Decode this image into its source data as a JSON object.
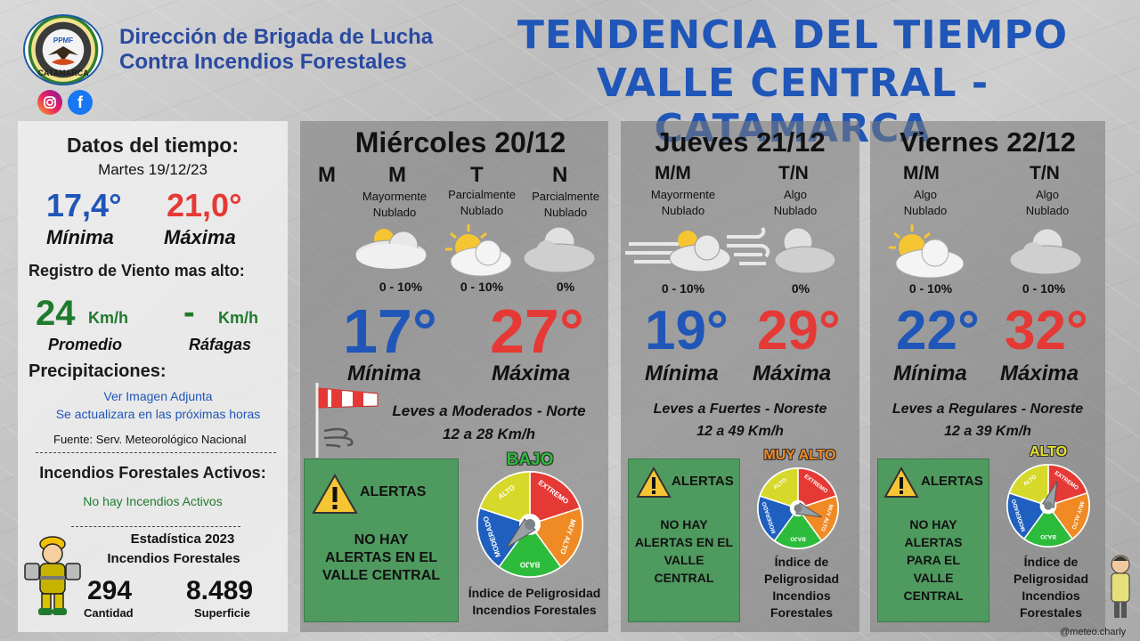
{
  "header": {
    "org_line1": "Dirección de Brigada de Lucha",
    "org_line2": "Contra Incendios Forestales",
    "title_line1": "TENDENCIA DEL TIEMPO",
    "title_line2": "VALLE CENTRAL - CATAMARCA",
    "logo_text": "CATAMARCA",
    "logo_badge": "PPMF",
    "instagram_icon": "instagram-icon",
    "facebook_icon": "facebook-icon"
  },
  "left": {
    "heading": "Datos del tiempo:",
    "date": "Martes 19/12/23",
    "min_value": "17,4°",
    "max_value": "21,0°",
    "min_label": "Mínima",
    "max_label": "Máxima",
    "wind_heading": "Registro de Viento mas alto:",
    "wind_avg": "24",
    "wind_avg_unit": "Km/h",
    "wind_gust": "-",
    "wind_gust_unit": "Km/h",
    "wind_avg_label": "Promedio",
    "wind_gust_label": "Ráfagas",
    "precip_heading": "Precipitaciones:",
    "precip_line1": "Ver Imagen Adjunta",
    "precip_line2": "Se actualizara en las próximas horas",
    "source": "Fuente: Serv. Meteorológico Nacional",
    "fires_heading": "Incendios Forestales Activos:",
    "fires_status": "No hay Incendios Activos",
    "stats_line1": "Estadística 2023",
    "stats_line2": "Incendios Forestales",
    "count_value": "294",
    "count_label": "Cantidad",
    "area_value": "8.489",
    "area_label": "Superficie"
  },
  "days": [
    {
      "title": "Miércoles 20/12",
      "periods": [
        "M",
        "M",
        "T",
        "N"
      ],
      "conditions": [
        {
          "line1": "Mayormente",
          "line2": "Nublado",
          "pct": "0 - 10%"
        },
        {
          "line1": "Parcialmente",
          "line2": "Nublado",
          "pct": "0 - 10%"
        },
        {
          "line1": "Parcialmente",
          "line2": "Nublado",
          "pct": "0%"
        }
      ],
      "min": "17°",
      "max": "27°",
      "min_label": "Mínima",
      "max_label": "Máxima",
      "wind_line1": "Leves a Moderados - Norte",
      "wind_line2": "12 a 28 Km/h",
      "alert_title": "ALERTAS",
      "alert_body": [
        "NO HAY",
        "ALERTAS EN EL",
        "VALLE CENTRAL"
      ],
      "danger_level": "BAJO",
      "index_lines": [
        "Índice de Peligrosidad",
        "Incendios Forestales"
      ]
    },
    {
      "title": "Jueves 21/12",
      "periods": [
        "M/M",
        "T/N"
      ],
      "conditions": [
        {
          "line1": "Mayormente",
          "line2": "Nublado",
          "pct": "0 - 10%"
        },
        {
          "line1": "Algo",
          "line2": "Nublado",
          "pct": "0%"
        }
      ],
      "min": "19°",
      "max": "29°",
      "min_label": "Mínima",
      "max_label": "Máxima",
      "wind_line1": "Leves a Fuertes - Noreste",
      "wind_line2": "12 a 49 Km/h",
      "alert_title": "ALERTAS",
      "alert_body": [
        "NO HAY",
        "ALERTAS EN EL",
        "VALLE",
        "CENTRAL"
      ],
      "danger_level": "MUY ALTO",
      "index_lines": [
        "Índice de",
        "Peligrosidad",
        "Incendios",
        "Forestales"
      ]
    },
    {
      "title": "Viernes 22/12",
      "periods": [
        "M/M",
        "T/N"
      ],
      "conditions": [
        {
          "line1": "Algo",
          "line2": "Nublado",
          "pct": "0 - 10%"
        },
        {
          "line1": "Algo",
          "line2": "Nublado",
          "pct": "0 - 10%"
        }
      ],
      "min": "22°",
      "max": "32°",
      "min_label": "Mínima",
      "max_label": "Máxima",
      "wind_line1": "Leves a Regulares - Noreste",
      "wind_line2": "12 a 39 Km/h",
      "alert_title": "ALERTAS",
      "alert_body": [
        "NO HAY",
        "ALERTAS",
        "PARA EL",
        "VALLE",
        "CENTRAL"
      ],
      "danger_level": "ALTO",
      "index_lines": [
        "Índice de",
        "Peligrosidad",
        "Incendios",
        "Forestales"
      ]
    }
  ],
  "gauge": {
    "seg_extremo": "EXTREMO",
    "seg_muy_alto": "MUY ALTO",
    "seg_bajo": "BAJO",
    "seg_moderado": "MODERADO",
    "seg_alto": "ALTO"
  },
  "colors": {
    "title_blue": "#1f56b8",
    "max_red": "#e53935",
    "wind_green": "#1f7a2e",
    "alert_green": "#4f9a5f",
    "bajo_green": "#2dbb3b",
    "muy_alto_orange": "#f08a24",
    "alto_yellow": "#e6e22a"
  },
  "footer": {
    "credit": "@meteo.charly"
  }
}
